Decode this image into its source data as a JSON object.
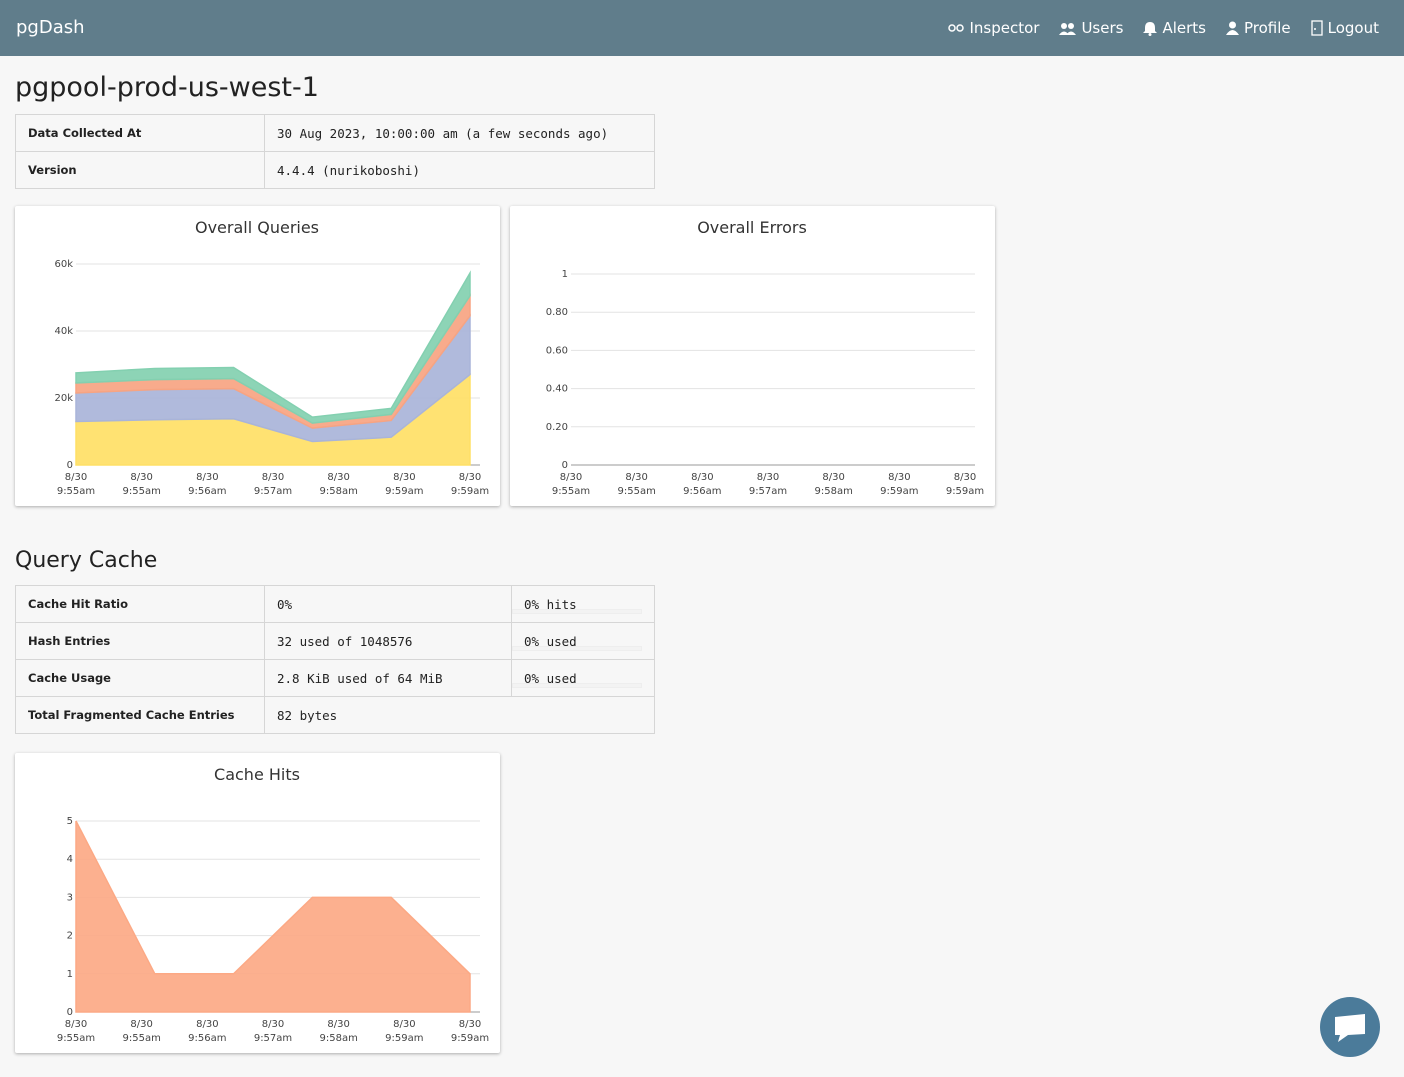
{
  "header": {
    "brand": "pgDash",
    "nav": [
      "Inspector",
      "Users",
      "Alerts",
      "Profile",
      "Logout"
    ]
  },
  "page_title": "pgpool-prod-us-west-1",
  "info_table": {
    "rows": [
      [
        "Data Collected At",
        "30 Aug 2023, 10:00:00 am (a few seconds ago)"
      ],
      [
        "Version",
        "4.4.4 (nurikoboshi)"
      ]
    ]
  },
  "section_title": "Query Cache",
  "cache_table": {
    "rows": [
      [
        "Cache Hit Ratio",
        "0%",
        "0% hits"
      ],
      [
        "Hash Entries",
        "32 used of 1048576",
        "0% used"
      ],
      [
        "Cache Usage",
        "2.8 KiB used of 64 MiB",
        "0% used"
      ],
      [
        "Total Fragmented Cache Entries",
        "82 bytes"
      ]
    ]
  },
  "chart_data": [
    {
      "type": "area",
      "title": "Overall Queries",
      "xticks": [
        [
          "8/30",
          "9:55am"
        ],
        [
          "8/30",
          "9:55am"
        ],
        [
          "8/30",
          "9:56am"
        ],
        [
          "8/30",
          "9:57am"
        ],
        [
          "8/30",
          "9:58am"
        ],
        [
          "8/30",
          "9:59am"
        ],
        [
          "8/30",
          "9:59am"
        ]
      ],
      "ylim": [
        0,
        60000
      ],
      "yticks": [
        0,
        {
          "value": 20000,
          "label": "20k"
        },
        {
          "value": 40000,
          "label": "40k"
        },
        {
          "value": 60000,
          "label": "60k"
        }
      ],
      "stacked": true,
      "grid": true,
      "series": [
        {
          "color": "#ffe066",
          "values": [
            13000,
            13500,
            13800,
            7000,
            8300,
            27000
          ]
        },
        {
          "color": "#a9b4d9",
          "values": [
            8500,
            9000,
            9000,
            4000,
            5000,
            17500
          ]
        },
        {
          "color": "#f7a482",
          "values": [
            3000,
            3000,
            3000,
            1500,
            1800,
            6000
          ]
        },
        {
          "color": "#83d0b0",
          "values": [
            3000,
            3300,
            3300,
            1800,
            1800,
            6800
          ]
        }
      ]
    },
    {
      "type": "line",
      "title": "Overall Errors",
      "xticks": [
        [
          "8/30",
          "9:55am"
        ],
        [
          "8/30",
          "9:55am"
        ],
        [
          "8/30",
          "9:56am"
        ],
        [
          "8/30",
          "9:57am"
        ],
        [
          "8/30",
          "9:58am"
        ],
        [
          "8/30",
          "9:59am"
        ],
        [
          "8/30",
          "9:59am"
        ]
      ],
      "ylim": [
        0,
        1
      ],
      "yticks": [
        0,
        {
          "value": 0.2,
          "label": "0.20"
        },
        {
          "value": 0.4,
          "label": "0.40"
        },
        {
          "value": 0.6,
          "label": "0.60"
        },
        {
          "value": 0.8,
          "label": "0.80"
        },
        1
      ],
      "grid": true,
      "series": []
    },
    {
      "type": "area",
      "title": "Cache Hits",
      "xticks": [
        [
          "8/30",
          "9:55am"
        ],
        [
          "8/30",
          "9:55am"
        ],
        [
          "8/30",
          "9:56am"
        ],
        [
          "8/30",
          "9:57am"
        ],
        [
          "8/30",
          "9:58am"
        ],
        [
          "8/30",
          "9:59am"
        ],
        [
          "8/30",
          "9:59am"
        ]
      ],
      "ylim": [
        0,
        5
      ],
      "yticks": [
        0,
        1,
        2,
        3,
        4,
        5
      ],
      "grid": true,
      "series": [
        {
          "color": "#fca985",
          "values": [
            5,
            1,
            1,
            3,
            3,
            1
          ]
        }
      ]
    }
  ]
}
